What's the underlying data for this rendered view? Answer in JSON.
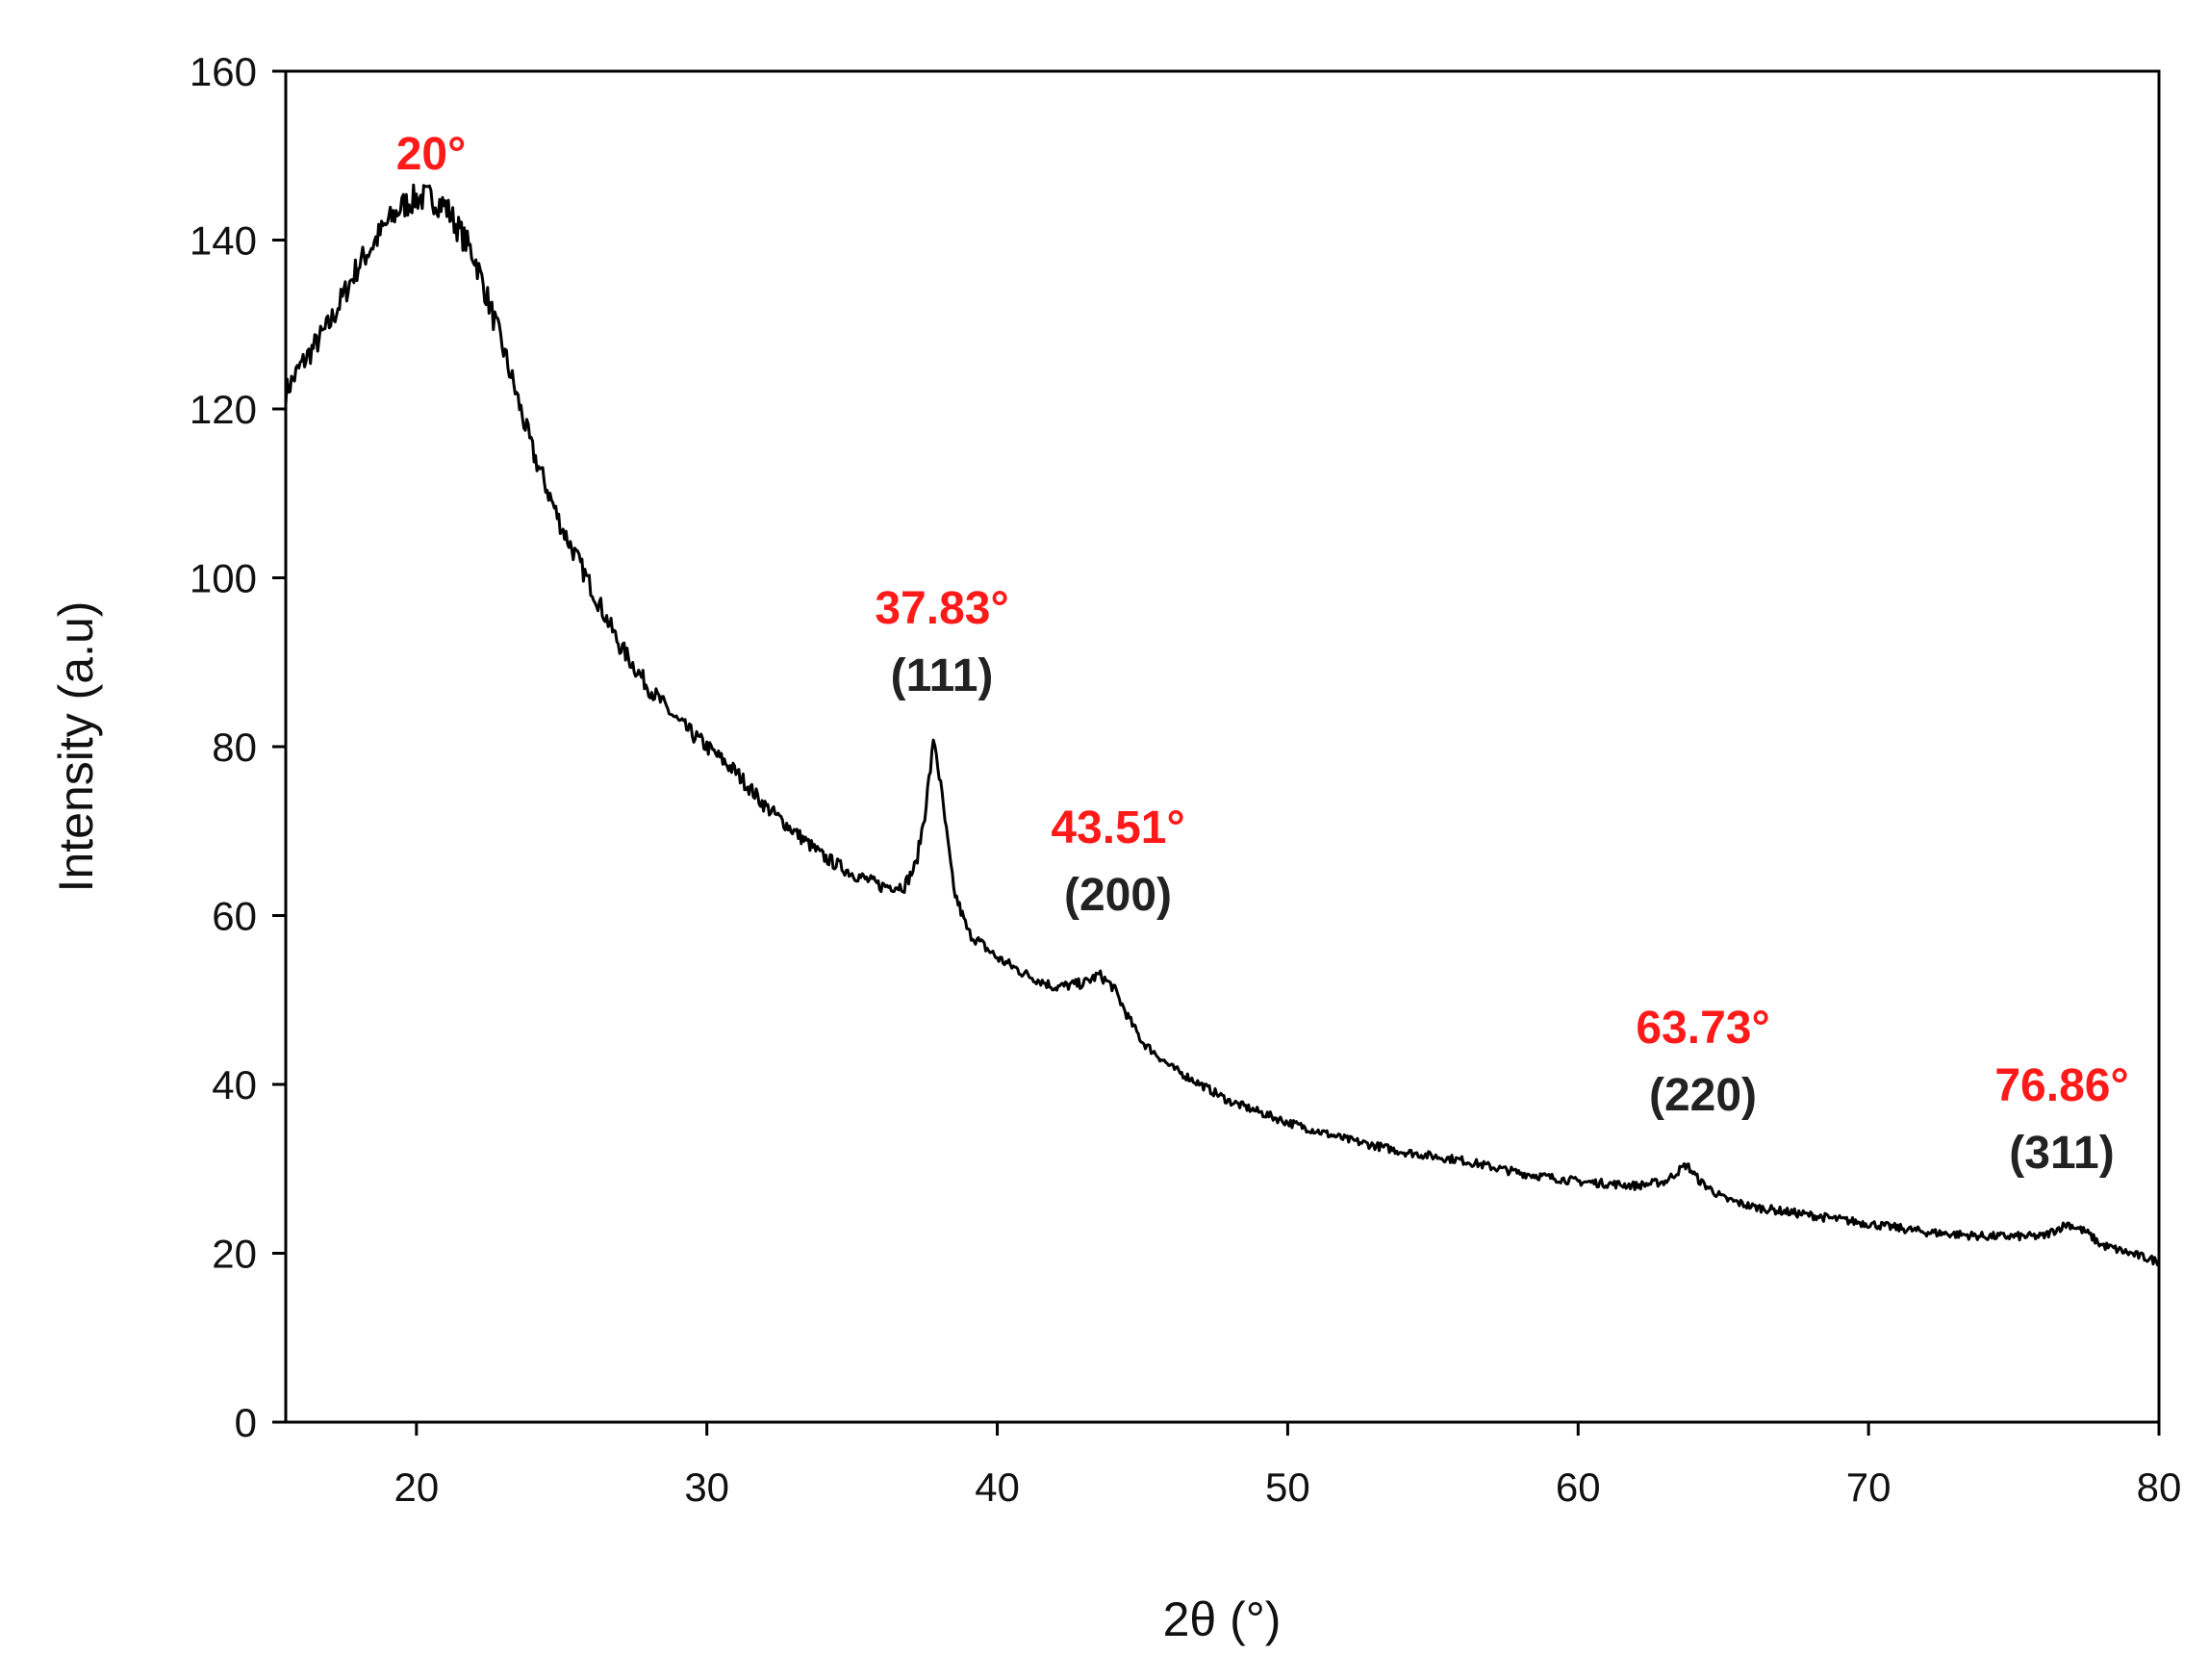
{
  "chart_data": {
    "type": "line",
    "title": "",
    "xlabel": "2θ (°)",
    "ylabel": "Intensity (a.u)",
    "xlim": [
      15.5,
      80
    ],
    "ylim": [
      0,
      160
    ],
    "x_ticks": [
      20,
      30,
      40,
      50,
      60,
      70,
      80
    ],
    "y_ticks": [
      0,
      20,
      40,
      60,
      80,
      100,
      120,
      140,
      160
    ],
    "grid": false,
    "legend": "none",
    "colors": {
      "line": "#000000",
      "angle_label": "#ff1a1a",
      "hkl_label": "#222222"
    },
    "series": [
      {
        "x": [
          15.5,
          16,
          17,
          18,
          19,
          19.5,
          20,
          20.5,
          21,
          22,
          23,
          24,
          25,
          26,
          27,
          28,
          29,
          30,
          31,
          32,
          33,
          34,
          35,
          36,
          36.8,
          37.2,
          37.5,
          37.83,
          38.1,
          38.5,
          39,
          40,
          41,
          42,
          43,
          43.51,
          44,
          44.5,
          45,
          46,
          48,
          50,
          52,
          54,
          56,
          58,
          60,
          62,
          63,
          63.73,
          64.2,
          65,
          66,
          68,
          70,
          72,
          74,
          75,
          76,
          76.86,
          77.5,
          78,
          79,
          80
        ],
        "y": [
          122,
          125,
          130,
          137,
          142,
          144,
          145,
          145,
          144,
          138,
          127,
          115,
          106,
          99,
          92,
          87,
          83,
          80,
          77,
          73,
          70,
          67,
          65,
          63.5,
          63.5,
          66,
          72,
          81,
          74,
          63,
          58,
          55,
          53,
          51.5,
          52,
          53,
          51.5,
          48,
          45,
          42,
          38,
          35.5,
          33.5,
          32,
          31,
          29.5,
          28.5,
          28,
          28.5,
          30.5,
          28.5,
          26.5,
          25.5,
          24.5,
          23.5,
          22.5,
          22,
          22,
          22,
          23.5,
          22.5,
          21,
          20,
          19
        ]
      }
    ],
    "annotations": [
      {
        "angle": "20°"
      },
      {
        "angle": "37.83°",
        "hkl": "(111)"
      },
      {
        "angle": "43.51°",
        "hkl": "(200)"
      },
      {
        "angle": "63.73°",
        "hkl": "(220)"
      },
      {
        "angle": "76.86°",
        "hkl": "(311)"
      }
    ]
  }
}
